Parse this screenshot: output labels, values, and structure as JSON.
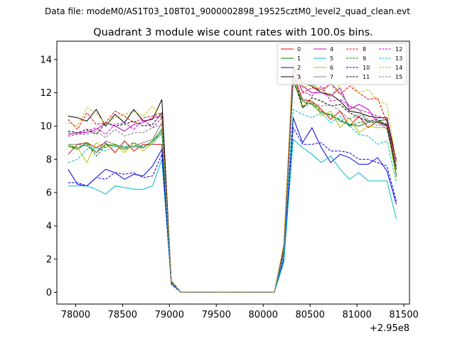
{
  "chart_data": {
    "type": "line",
    "suptitle": "Data file: modeM0/AS1T03_108T01_9000002898_19525cztM0_level2_quad_clean.evt",
    "title": "Quadrant 3 module wise count rates with 100.0s bins.",
    "xlabel": "",
    "ylabel": "",
    "x_offset_label": "+2.95e8",
    "xlim": [
      77800,
      81560
    ],
    "ylim": [
      -0.7,
      15.1
    ],
    "xticks": [
      78000,
      78500,
      79000,
      79500,
      80000,
      80500,
      81000,
      81500
    ],
    "yticks": [
      0,
      2,
      4,
      6,
      8,
      10,
      12,
      14
    ],
    "grid": false,
    "legend_position": "top-right",
    "x": [
      77920,
      78020,
      78120,
      78220,
      78320,
      78420,
      78520,
      78620,
      78720,
      78820,
      78920,
      79020,
      79120,
      79220,
      79320,
      79420,
      79520,
      79620,
      79720,
      79820,
      79920,
      80020,
      80120,
      80220,
      80320,
      80420,
      80520,
      80620,
      80720,
      80820,
      80920,
      81020,
      81120,
      81220,
      81320,
      81420
    ],
    "series": [
      {
        "name": "0",
        "color": "#e00000",
        "dash": false,
        "values": [
          8.3,
          8.9,
          9.0,
          8.7,
          9.0,
          8.4,
          9.1,
          8.5,
          8.9,
          8.9,
          8.9,
          0.6,
          0.02,
          0.02,
          0.02,
          0.02,
          0.02,
          0.02,
          0.02,
          0.02,
          0.02,
          0.02,
          0.02,
          2.5,
          13.1,
          11.6,
          11.5,
          11.0,
          10.4,
          10.9,
          10.0,
          10.6,
          9.9,
          10.3,
          10.1,
          8.0
        ]
      },
      {
        "name": "1",
        "color": "#007f00",
        "dash": false,
        "values": [
          8.8,
          8.6,
          9.0,
          8.4,
          8.9,
          8.8,
          8.6,
          8.8,
          8.7,
          9.1,
          9.8,
          0.6,
          0.02,
          0.02,
          0.02,
          0.02,
          0.02,
          0.02,
          0.02,
          0.02,
          0.02,
          0.02,
          0.02,
          2.4,
          12.6,
          11.5,
          11.3,
          10.8,
          10.7,
          10.3,
          10.1,
          10.0,
          10.2,
          10.3,
          10.4,
          7.0
        ]
      },
      {
        "name": "2",
        "color": "#0000e0",
        "dash": false,
        "values": [
          7.4,
          6.5,
          6.4,
          6.9,
          7.4,
          7.2,
          6.8,
          7.1,
          7.0,
          7.6,
          8.6,
          0.5,
          0.02,
          0.02,
          0.02,
          0.02,
          0.02,
          0.02,
          0.02,
          0.02,
          0.02,
          0.02,
          0.02,
          2.0,
          10.5,
          9.0,
          9.9,
          8.7,
          7.8,
          8.3,
          8.1,
          7.7,
          7.7,
          8.1,
          7.3,
          5.3
        ]
      },
      {
        "name": "3",
        "color": "#000000",
        "dash": false,
        "values": [
          10.6,
          10.5,
          10.3,
          11.0,
          10.0,
          10.7,
          10.2,
          11.0,
          10.3,
          10.4,
          11.6,
          0.7,
          0.02,
          0.02,
          0.02,
          0.02,
          0.02,
          0.02,
          0.02,
          0.02,
          0.02,
          0.02,
          0.02,
          2.8,
          13.5,
          12.6,
          12.4,
          12.0,
          11.9,
          11.5,
          10.9,
          10.8,
          10.6,
          10.5,
          10.5,
          7.9
        ]
      },
      {
        "name": "4",
        "color": "#c000c0",
        "dash": false,
        "values": [
          9.5,
          9.6,
          9.6,
          9.8,
          10.2,
          10.0,
          9.7,
          10.1,
          10.2,
          10.5,
          10.6,
          0.7,
          0.02,
          0.02,
          0.02,
          0.02,
          0.02,
          0.02,
          0.02,
          0.02,
          0.02,
          0.02,
          0.02,
          2.6,
          13.0,
          12.4,
          12.0,
          12.0,
          11.8,
          12.3,
          11.0,
          11.3,
          11.0,
          10.2,
          10.0,
          7.6
        ]
      },
      {
        "name": "5",
        "color": "#00bfbf",
        "dash": false,
        "values": [
          6.4,
          6.4,
          6.4,
          6.2,
          5.9,
          6.4,
          6.3,
          6.2,
          6.2,
          6.4,
          8.0,
          0.5,
          0.02,
          0.02,
          0.02,
          0.02,
          0.02,
          0.02,
          0.02,
          0.02,
          0.02,
          0.02,
          0.02,
          1.8,
          9.2,
          8.7,
          8.3,
          7.8,
          8.2,
          7.4,
          6.8,
          7.2,
          6.7,
          6.7,
          6.7,
          4.4
        ]
      },
      {
        "name": "6",
        "color": "#bfbf00",
        "dash": false,
        "values": [
          8.9,
          8.7,
          7.8,
          9.0,
          8.7,
          8.9,
          8.4,
          9.0,
          8.5,
          9.0,
          9.5,
          0.6,
          0.02,
          0.02,
          0.02,
          0.02,
          0.02,
          0.02,
          0.02,
          0.02,
          0.02,
          0.02,
          0.02,
          2.5,
          12.9,
          11.2,
          11.5,
          10.6,
          10.9,
          9.9,
          10.5,
          9.6,
          10.0,
          9.9,
          9.9,
          6.9
        ]
      },
      {
        "name": "7",
        "color": "#7f7f7f",
        "dash": false,
        "values": [
          8.9,
          8.9,
          8.8,
          8.4,
          9.1,
          8.9,
          8.7,
          8.8,
          9.0,
          9.2,
          10.2,
          0.6,
          0.02,
          0.02,
          0.02,
          0.02,
          0.02,
          0.02,
          0.02,
          0.02,
          0.02,
          0.02,
          0.02,
          2.7,
          13.4,
          12.8,
          12.6,
          12.0,
          12.6,
          12.0,
          11.2,
          11.0,
          10.2,
          10.3,
          9.8,
          7.5
        ]
      },
      {
        "name": "8",
        "color": "#e00000",
        "dash": true,
        "values": [
          10.4,
          9.8,
          10.8,
          10.1,
          10.2,
          10.9,
          10.6,
          10.2,
          10.5,
          10.6,
          10.8,
          0.7,
          0.02,
          0.02,
          0.02,
          0.02,
          0.02,
          0.02,
          0.02,
          0.02,
          0.02,
          0.02,
          0.02,
          2.8,
          13.7,
          12.0,
          12.3,
          12.2,
          12.5,
          11.9,
          12.4,
          12.0,
          11.6,
          11.7,
          10.2,
          7.9
        ]
      },
      {
        "name": "9",
        "color": "#007f00",
        "dash": true,
        "values": [
          8.8,
          8.7,
          8.9,
          8.2,
          8.8,
          8.9,
          8.7,
          9.0,
          8.7,
          9.1,
          9.6,
          0.6,
          0.02,
          0.02,
          0.02,
          0.02,
          0.02,
          0.02,
          0.02,
          0.02,
          0.02,
          0.02,
          0.02,
          2.4,
          12.8,
          11.1,
          11.4,
          10.9,
          10.6,
          10.4,
          10.0,
          10.2,
          10.3,
          10.2,
          10.1,
          7.1
        ]
      },
      {
        "name": "10",
        "color": "#0000e0",
        "dash": true,
        "values": [
          6.6,
          6.6,
          6.4,
          6.9,
          6.8,
          7.2,
          7.1,
          7.2,
          6.9,
          7.0,
          8.3,
          0.5,
          0.02,
          0.02,
          0.02,
          0.02,
          0.02,
          0.02,
          0.02,
          0.02,
          0.02,
          0.02,
          0.02,
          2.1,
          9.9,
          8.9,
          8.9,
          9.0,
          8.5,
          8.5,
          8.4,
          8.0,
          8.0,
          7.8,
          7.6,
          5.5
        ]
      },
      {
        "name": "11",
        "color": "#000000",
        "dash": true,
        "values": [
          9.7,
          9.6,
          9.8,
          9.5,
          10.2,
          10.0,
          10.1,
          10.3,
          10.0,
          10.1,
          10.8,
          0.7,
          0.02,
          0.02,
          0.02,
          0.02,
          0.02,
          0.02,
          0.02,
          0.02,
          0.02,
          0.02,
          0.02,
          2.6,
          13.2,
          11.1,
          11.7,
          11.5,
          11.2,
          11.3,
          10.8,
          10.5,
          10.3,
          10.4,
          10.0,
          7.4
        ]
      },
      {
        "name": "12",
        "color": "#c000c0",
        "dash": true,
        "values": [
          9.4,
          9.5,
          9.7,
          9.9,
          9.5,
          10.1,
          10.2,
          9.8,
          10.4,
          9.9,
          10.5,
          0.7,
          0.02,
          0.02,
          0.02,
          0.02,
          0.02,
          0.02,
          0.02,
          0.02,
          0.02,
          0.02,
          0.02,
          2.5,
          13.0,
          12.1,
          11.8,
          12.4,
          11.5,
          11.6,
          11.2,
          11.0,
          10.8,
          10.6,
          10.4,
          7.6
        ]
      },
      {
        "name": "13",
        "color": "#00bfbf",
        "dash": true,
        "values": [
          7.8,
          8.0,
          8.6,
          8.7,
          8.5,
          8.8,
          8.8,
          8.7,
          8.8,
          8.9,
          9.7,
          0.6,
          0.02,
          0.02,
          0.02,
          0.02,
          0.02,
          0.02,
          0.02,
          0.02,
          0.02,
          0.02,
          0.02,
          2.2,
          11.0,
          10.7,
          10.5,
          10.8,
          10.2,
          10.6,
          10.0,
          9.5,
          9.4,
          8.9,
          9.1,
          6.6
        ]
      },
      {
        "name": "14",
        "color": "#bfbf00",
        "dash": true,
        "values": [
          10.2,
          10.0,
          11.1,
          10.8,
          10.1,
          10.5,
          10.7,
          10.9,
          10.6,
          11.2,
          10.5,
          0.7,
          0.02,
          0.02,
          0.02,
          0.02,
          0.02,
          0.02,
          0.02,
          0.02,
          0.02,
          0.02,
          0.02,
          2.9,
          14.2,
          12.3,
          12.5,
          12.2,
          11.8,
          12.5,
          12.6,
          12.0,
          12.2,
          11.5,
          11.3,
          7.8
        ]
      },
      {
        "name": "15",
        "color": "#7f7f7f",
        "dash": true,
        "values": [
          9.6,
          9.5,
          9.5,
          9.7,
          9.3,
          9.8,
          9.4,
          9.6,
          9.6,
          9.9,
          10.1,
          0.6,
          0.02,
          0.02,
          0.02,
          0.02,
          0.02,
          0.02,
          0.02,
          0.02,
          0.02,
          0.02,
          0.02,
          2.6,
          12.8,
          11.6,
          11.4,
          11.2,
          11.3,
          10.9,
          10.4,
          10.7,
          10.4,
          10.0,
          10.2,
          7.5
        ]
      }
    ]
  }
}
